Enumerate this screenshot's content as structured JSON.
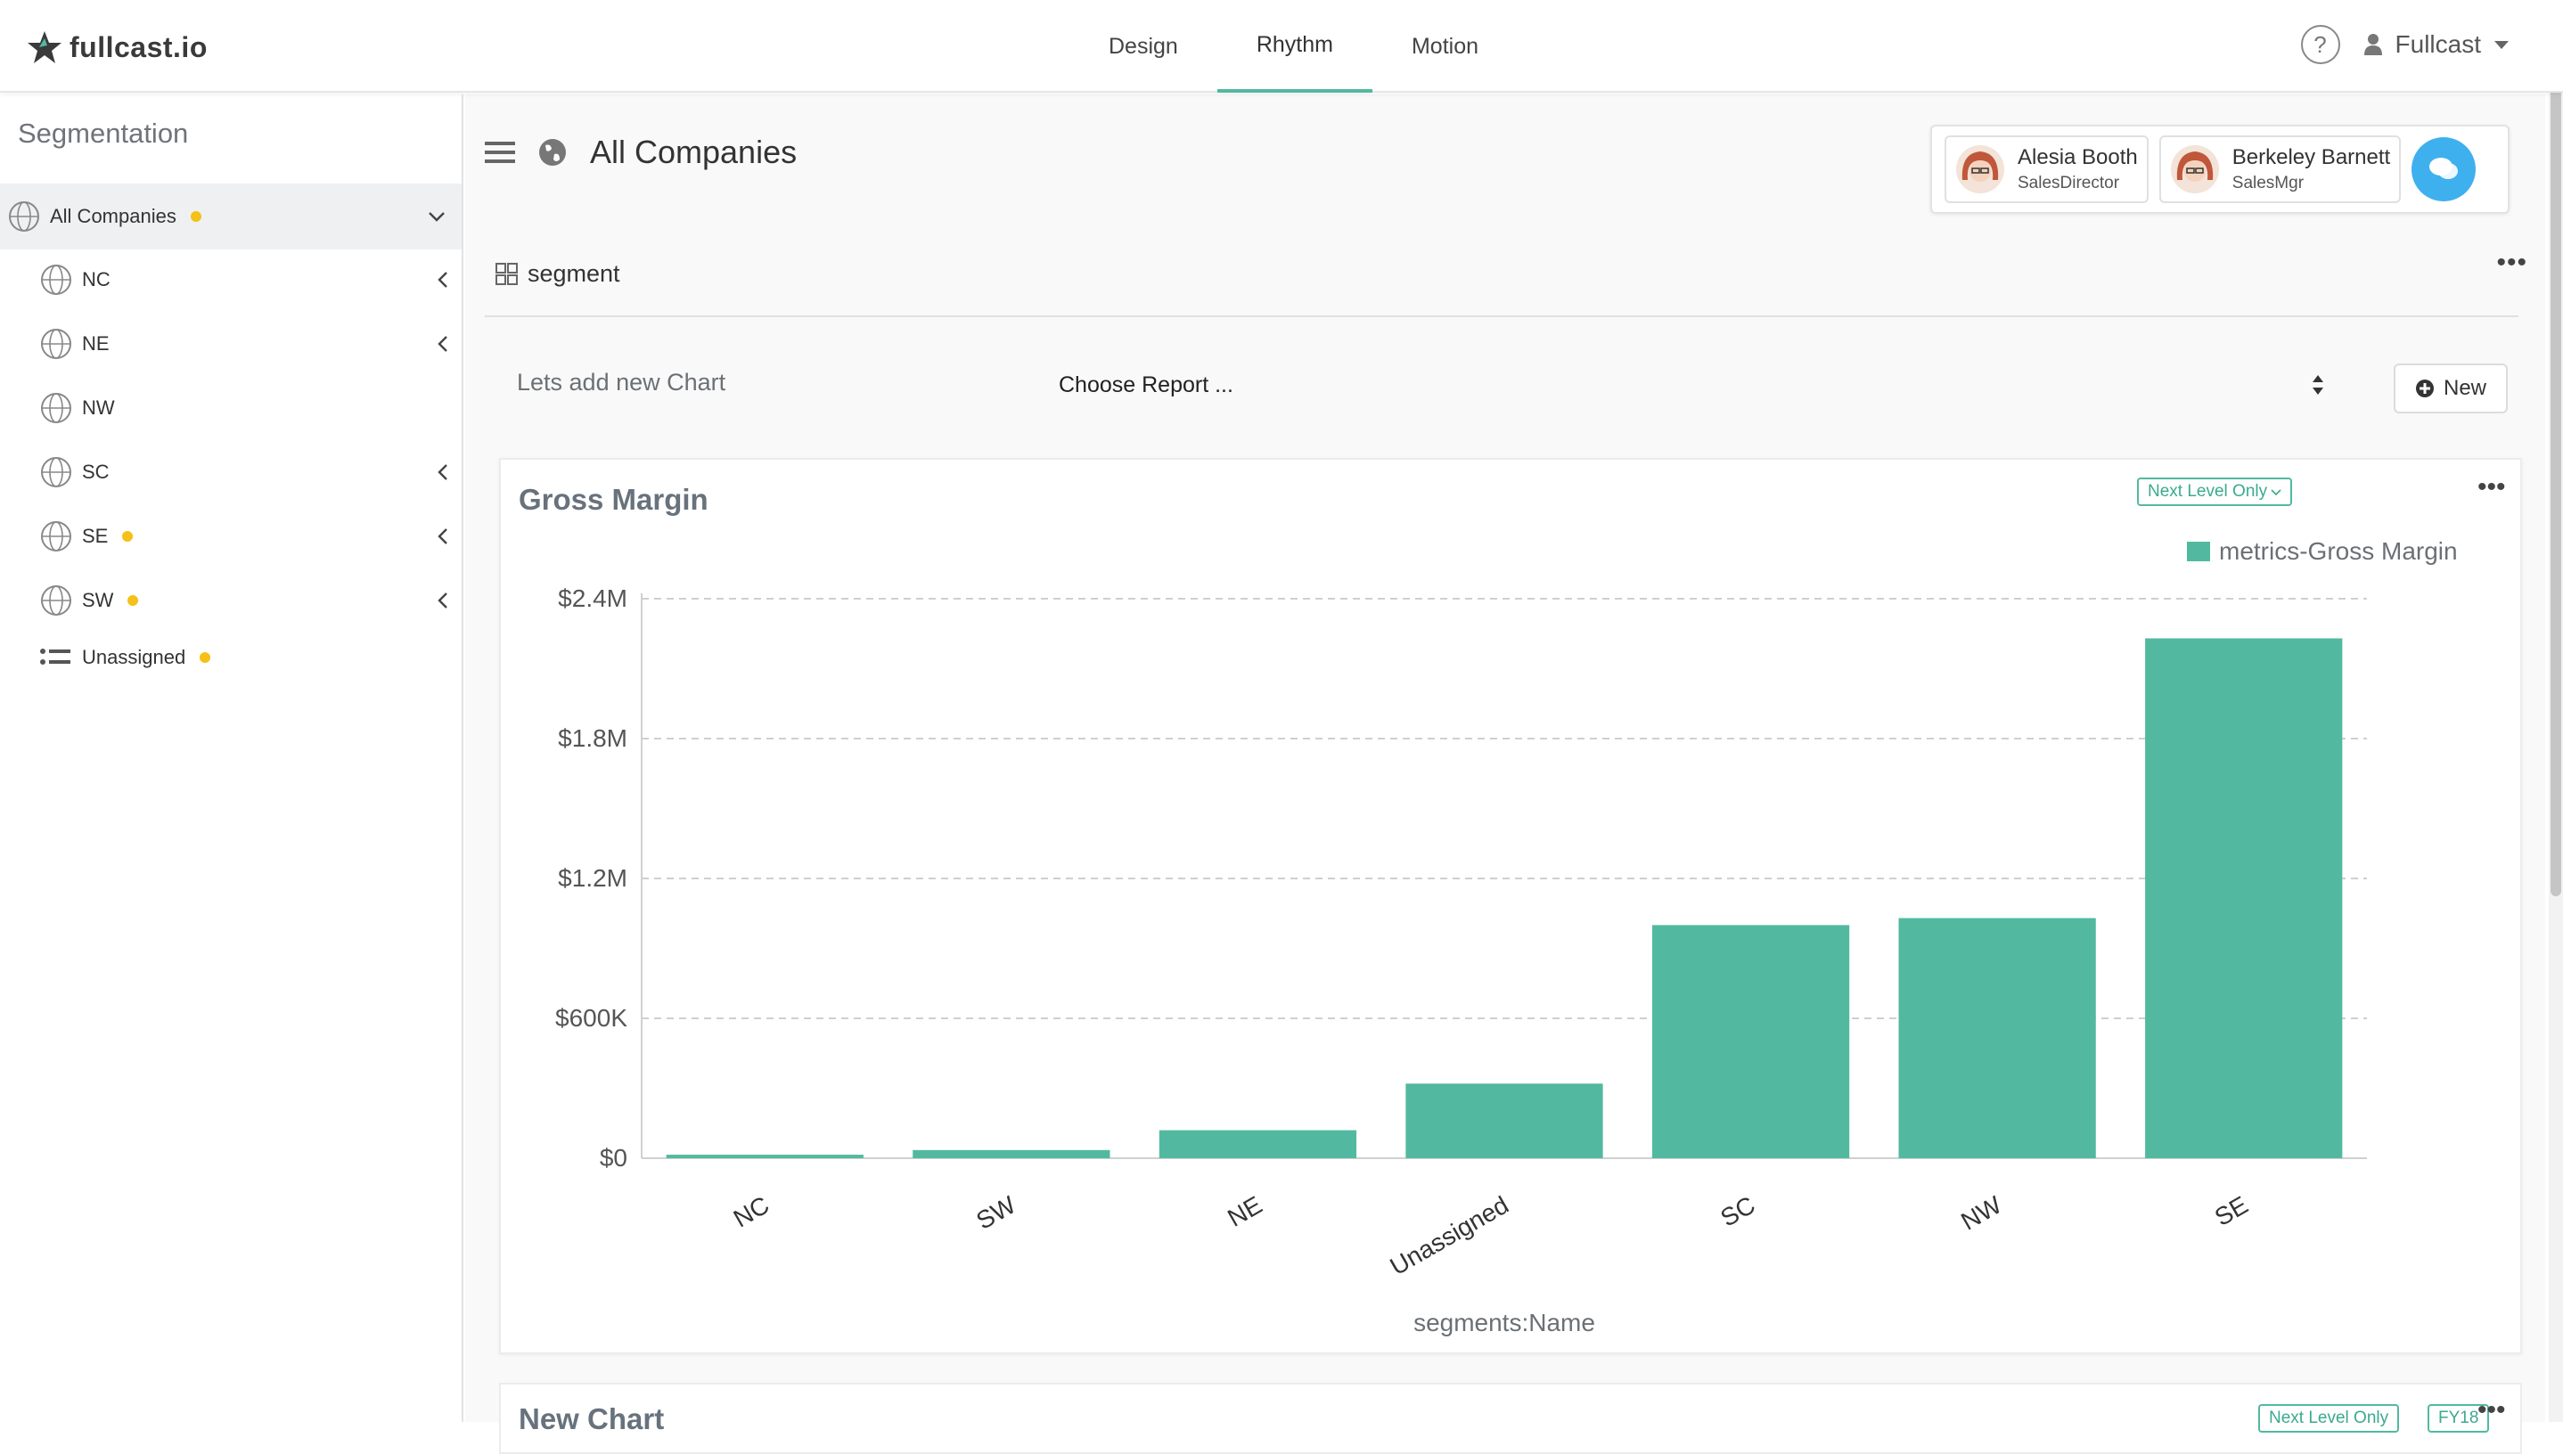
{
  "app": {
    "logo_text": "fullcast.io",
    "nav_tabs": [
      {
        "label": "Design",
        "active": false
      },
      {
        "label": "Rhythm",
        "active": true
      },
      {
        "label": "Motion",
        "active": false
      }
    ],
    "help_glyph": "?",
    "user_name": "Fullcast"
  },
  "sidebar": {
    "title": "Segmentation",
    "root": {
      "label": "All Companies",
      "has_dot": true
    },
    "items": [
      {
        "label": "NC",
        "has_dot": false,
        "expandable": true
      },
      {
        "label": "NE",
        "has_dot": false,
        "expandable": true
      },
      {
        "label": "NW",
        "has_dot": false,
        "expandable": false
      },
      {
        "label": "SC",
        "has_dot": false,
        "expandable": true
      },
      {
        "label": "SE",
        "has_dot": true,
        "expandable": true
      },
      {
        "label": "SW",
        "has_dot": true,
        "expandable": true
      },
      {
        "label": "Unassigned",
        "has_dot": true,
        "expandable": false
      }
    ]
  },
  "header": {
    "title": "All Companies",
    "collaborators": [
      {
        "name": "Alesia Booth",
        "role": "SalesDirector"
      },
      {
        "name": "Berkeley Barnett",
        "role": "SalesMgr"
      }
    ]
  },
  "segment": {
    "label": "segment"
  },
  "add_chart": {
    "label": "Lets add new Chart",
    "select_value": "Choose Report ...",
    "new_button": "New"
  },
  "chart_card": {
    "title": "Gross Margin",
    "filter_badge": "Next Level Only"
  },
  "next_card": {
    "title": "New Chart",
    "filter_badge": "Next Level Only",
    "period_badge": "FY18"
  },
  "colors": {
    "accent": "#52b9a0",
    "dot": "#f5c018",
    "chat": "#3fb0ee",
    "title_grey": "#68727c"
  },
  "chart_data": {
    "type": "bar",
    "title": "Gross Margin",
    "xlabel": "segments:Name",
    "ylabel": "",
    "legend": "metrics-Gross Margin",
    "legend_position": "top-right",
    "categories": [
      "NC",
      "SW",
      "NE",
      "Unassigned",
      "SC",
      "NW",
      "SE"
    ],
    "values": [
      15000,
      35000,
      120000,
      320000,
      1000000,
      1030000,
      2230000
    ],
    "ylim": [
      0,
      2400000
    ],
    "yticks": [
      0,
      600000,
      1200000,
      1800000,
      2400000
    ],
    "ytick_labels": [
      "$0",
      "$600K",
      "$1.2M",
      "$1.8M",
      "$2.4M"
    ],
    "grid": true,
    "bar_color": "#52b9a0"
  }
}
